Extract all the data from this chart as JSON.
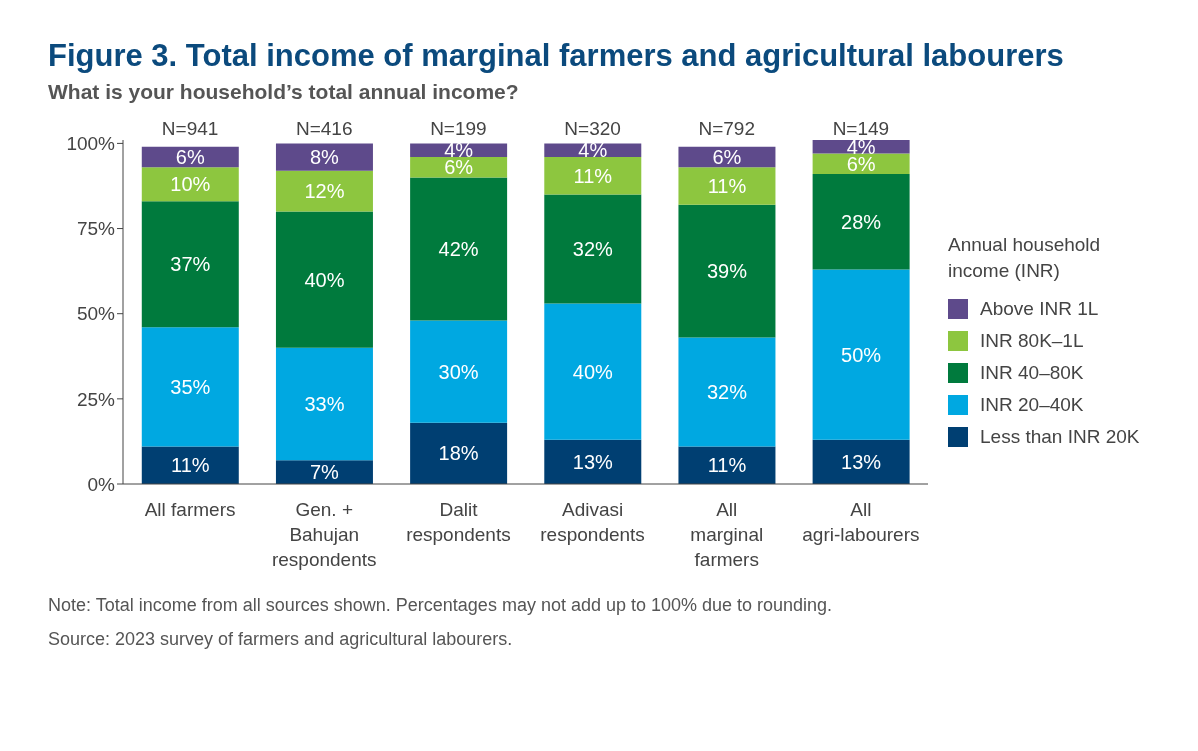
{
  "chart_data": {
    "type": "bar",
    "title": "Figure 3. Total income of marginal farmers and agricultural labourers",
    "subtitle": "What is your household’s total annual income?",
    "legend_title": "Annual household income (INR)",
    "categories": [
      "All farmers",
      "Gen. + Bahujan respondents",
      "Dalit respondents",
      "Adivasi respondents",
      "All marginal farmers",
      "All agri-labourers"
    ],
    "stacked": true,
    "legend": "right",
    "grid": false,
    "ylim": [
      0,
      101
    ],
    "yticks": [
      {
        "value": 0,
        "label": "0%"
      },
      {
        "value": 25,
        "label": "25%"
      },
      {
        "value": 50,
        "label": "50%"
      },
      {
        "value": 75,
        "label": "75%"
      },
      {
        "value": 100,
        "label": "100%"
      }
    ],
    "series": [
      {
        "name": "Less than INR 20K",
        "color": "#003f72",
        "values": [
          11,
          7,
          18,
          13,
          11,
          13
        ],
        "value_labels": [
          "11%",
          "7%",
          "18%",
          "13%",
          "11%",
          "13%"
        ]
      },
      {
        "name": "INR 20–40K",
        "color": "#00a8e1",
        "values": [
          35,
          33,
          30,
          40,
          32,
          50
        ],
        "value_labels": [
          "35%",
          "33%",
          "30%",
          "40%",
          "32%",
          "50%"
        ]
      },
      {
        "name": "INR 40–80K",
        "color": "#007a3d",
        "values": [
          37,
          40,
          42,
          32,
          39,
          28
        ],
        "value_labels": [
          "37%",
          "40%",
          "42%",
          "32%",
          "39%",
          "28%"
        ]
      },
      {
        "name": "INR 80K–1L",
        "color": "#8dc63f",
        "values": [
          10,
          12,
          6,
          11,
          11,
          6
        ],
        "value_labels": [
          "10%",
          "12%",
          "6%",
          "11%",
          "11%",
          "6%"
        ]
      },
      {
        "name": "Above INR 1L",
        "color": "#5e4a8b",
        "values": [
          6,
          8,
          4,
          4,
          6,
          4
        ],
        "value_labels": [
          "6%",
          "8%",
          "4%",
          "4%",
          "6%",
          "4%"
        ]
      }
    ],
    "annotations": [
      {
        "text": "N=941",
        "x": "All farmers",
        "y": 100
      },
      {
        "text": "N=416",
        "x": "Gen. + Bahujan respondents",
        "y": 100
      },
      {
        "text": "N=199",
        "x": "Dalit respondents",
        "y": 100
      },
      {
        "text": "N=320",
        "x": "Adivasi respondents",
        "y": 100
      },
      {
        "text": "N=792",
        "x": "All marginal farmers",
        "y": 100
      },
      {
        "text": "N=149",
        "x": "All agri-labourers",
        "y": 100
      },
      "Note: Total income from all sources shown. Percentages may not add up to 100% due to rounding.",
      "Source: 2023 survey of farmers and agricultural labourers."
    ]
  }
}
